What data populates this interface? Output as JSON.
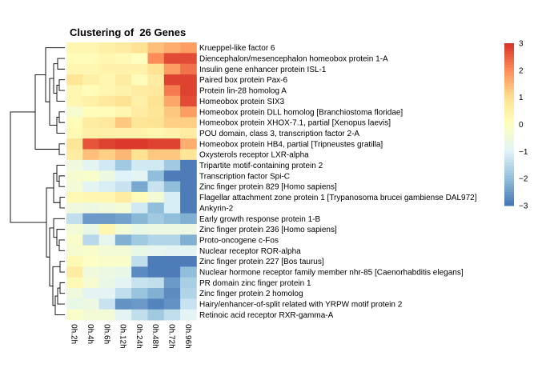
{
  "chart_data": {
    "type": "heatmap",
    "title": "Clustering of  26 Genes",
    "columns": [
      "0h.2h",
      "0h.4h",
      "0h.6h",
      "0h.12h",
      "0h.24h",
      "0h.48h",
      "0h.72h",
      "0h.96h"
    ],
    "rows": [
      "Krueppel-like factor 6",
      "Diencephalon/mesencephalon homeobox protein 1-A",
      "Insulin gene enhancer protein ISL-1",
      "Paired box protein Pax-6",
      "Protein lin-28 homolog A",
      "Homeobox protein SIX3",
      "Homeobox protein DLL homolog [Branchiostoma floridae]",
      "Homeobox protein XHOX-7.1, partial [Xenopus laevis]",
      "POU domain, class 3, transcription factor 2-A",
      "Homeobox protein HB4, partial [Tripneustes gratilla]",
      "Oxysterols receptor LXR-alpha",
      "Tripartite motif-containing protein 2",
      "Transcription factor Spi-C",
      "Zinc finger protein 829 [Homo sapiens]",
      "Flagellar attachment zone protein 1 [Trypanosoma brucei gambiense DAL972]",
      "Ankyrin-2",
      "Early growth response protein 1-B",
      "Zinc finger protein 236 [Homo sapiens]",
      "Proto-oncogene c-Fos",
      "Nuclear receptor ROR-alpha",
      "Zinc finger protein 227 [Bos taurus]",
      "Nuclear hormone receptor family member nhr-85 [Caenorhabditis elegans]",
      "PR domain zinc finger protein 1",
      "Zinc finger protein 2 homolog",
      "Hairy/enhancer-of-split related with YRPW motif protein 2",
      "Retinoic acid receptor RXR-gamma-A"
    ],
    "values": [
      [
        0.3,
        0.3,
        0.5,
        0.6,
        0.9,
        1.4,
        1.6,
        1.8
      ],
      [
        0.1,
        0.1,
        0.3,
        0.2,
        0.0,
        2.0,
        2.7,
        2.7
      ],
      [
        0.3,
        0.3,
        0.4,
        0.4,
        0.4,
        0.9,
        1.8,
        2.3
      ],
      [
        0.8,
        0.5,
        0.3,
        0.6,
        0.1,
        0.6,
        2.8,
        2.8
      ],
      [
        0.3,
        0.1,
        0.3,
        0.4,
        0.6,
        0.7,
        2.2,
        2.8
      ],
      [
        0.3,
        0.5,
        0.7,
        0.9,
        0.5,
        0.9,
        1.7,
        2.7
      ],
      [
        -0.3,
        0.1,
        0.1,
        0.3,
        0.6,
        0.8,
        1.3,
        1.8
      ],
      [
        0.1,
        0.6,
        0.7,
        1.3,
        0.8,
        0.9,
        1.2,
        1.2
      ],
      [
        0.2,
        0.5,
        0.5,
        0.4,
        0.4,
        0.3,
        0.4,
        0.6
      ],
      [
        0.8,
        2.6,
        2.8,
        2.9,
        2.9,
        2.8,
        2.8,
        1.6
      ],
      [
        0.6,
        1.4,
        1.2,
        1.5,
        0.9,
        1.3,
        1.3,
        0.8
      ],
      [
        -0.5,
        -0.9,
        -1.2,
        -1.8,
        -1.2,
        -1.2,
        -1.8,
        -2.9
      ],
      [
        -0.3,
        -0.2,
        -0.6,
        -1.0,
        -0.9,
        -2.0,
        -2.9,
        -2.9
      ],
      [
        -0.4,
        -0.9,
        -1.1,
        -1.3,
        -2.3,
        -1.3,
        -2.0,
        -2.9
      ],
      [
        0.2,
        0.3,
        0.3,
        0.6,
        0.1,
        -0.4,
        -1.1,
        -2.9
      ],
      [
        -0.5,
        -0.6,
        -0.5,
        -0.4,
        -1.2,
        -2.0,
        -1.1,
        -2.9
      ],
      [
        -1.4,
        -2.5,
        -2.5,
        -2.4,
        -2.1,
        -1.8,
        -2.0,
        -2.2
      ],
      [
        -0.4,
        -0.7,
        0.3,
        -0.4,
        -0.7,
        -0.6,
        -0.6,
        -0.6
      ],
      [
        -0.2,
        -1.5,
        -0.8,
        -2.2,
        -1.8,
        -1.6,
        -1.6,
        -2.2
      ],
      [
        -0.3,
        -0.2,
        -0.4,
        -0.4,
        -0.7,
        -0.8,
        -0.9,
        -0.9
      ],
      [
        0.2,
        -0.1,
        -0.2,
        -0.2,
        -1.4,
        -2.9,
        -2.9,
        -2.9
      ],
      [
        0.6,
        -0.5,
        -0.6,
        -0.7,
        -2.7,
        -2.9,
        -2.9,
        -2.0
      ],
      [
        0.2,
        -0.3,
        -0.7,
        -0.9,
        -1.3,
        -1.4,
        -2.5,
        -1.7
      ],
      [
        -0.5,
        -0.9,
        -0.9,
        -1.4,
        -1.9,
        -2.2,
        -2.7,
        -1.6
      ],
      [
        -0.7,
        -0.6,
        -1.3,
        -2.6,
        -2.5,
        -2.8,
        -2.6,
        -1.3
      ],
      [
        -0.2,
        -0.4,
        -0.4,
        -0.9,
        -1.4,
        -1.8,
        -1.4,
        -0.9
      ]
    ],
    "color_scale": {
      "min": -3,
      "max": 3,
      "stops": [
        "#4575B4",
        "#91BFDB",
        "#E0F3F8",
        "#FFFFBF",
        "#FEE090",
        "#FC8D59",
        "#D73027"
      ],
      "ticks": [
        3,
        2,
        1,
        0,
        -1,
        -2,
        -3
      ],
      "tick_labels": [
        "3",
        "2",
        "1",
        "0",
        "−1",
        "−2",
        "−3"
      ]
    },
    "row_dendrogram": "left",
    "legend_position": "right"
  }
}
